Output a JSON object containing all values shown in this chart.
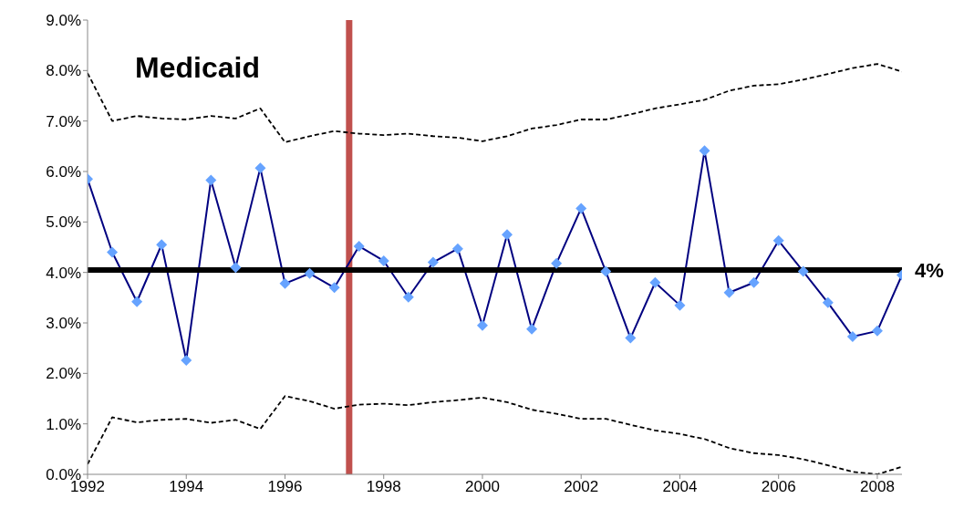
{
  "chart_data": {
    "type": "line",
    "title": "Medicaid",
    "x": [
      1992,
      1992.5,
      1993,
      1993.5,
      1994,
      1994.5,
      1995,
      1995.5,
      1996,
      1996.5,
      1997,
      1997.5,
      1998,
      1998.5,
      1999,
      1999.5,
      2000,
      2000.5,
      2001,
      2001.5,
      2002,
      2002.5,
      2003,
      2003.5,
      2004,
      2004.5,
      2005,
      2005.5,
      2006,
      2006.5,
      2007,
      2007.5,
      2008,
      2008.5
    ],
    "series": [
      {
        "color": "#000080",
        "marker": "diamond",
        "line_style": "solid",
        "values": [
          5.85,
          4.4,
          3.42,
          4.55,
          2.26,
          5.83,
          4.1,
          6.07,
          3.78,
          3.98,
          3.7,
          4.52,
          4.23,
          3.51,
          4.2,
          4.47,
          2.95,
          4.75,
          2.88,
          4.18,
          5.27,
          4.02,
          2.7,
          3.8,
          3.35,
          6.41,
          3.6,
          3.8,
          4.63,
          4.02,
          3.4,
          2.73,
          2.84,
          3.95
        ]
      },
      {
        "color": "#000000",
        "marker": "none",
        "line_style": "dashed",
        "values": [
          7.95,
          7.0,
          7.1,
          7.05,
          7.03,
          7.1,
          7.05,
          7.25,
          6.58,
          6.7,
          6.8,
          6.75,
          6.72,
          6.75,
          6.7,
          6.67,
          6.6,
          6.7,
          6.85,
          6.92,
          7.03,
          7.03,
          7.13,
          7.25,
          7.33,
          7.42,
          7.6,
          7.7,
          7.73,
          7.82,
          7.93,
          8.05,
          8.13,
          7.98
        ]
      },
      {
        "color": "#000000",
        "marker": "none",
        "line_style": "dashed",
        "values": [
          0.2,
          1.13,
          1.03,
          1.08,
          1.1,
          1.02,
          1.08,
          0.9,
          1.55,
          1.45,
          1.3,
          1.38,
          1.4,
          1.37,
          1.43,
          1.47,
          1.52,
          1.43,
          1.28,
          1.2,
          1.1,
          1.1,
          0.98,
          0.87,
          0.8,
          0.7,
          0.52,
          0.42,
          0.38,
          0.3,
          0.18,
          0.05,
          0.0,
          0.15
        ]
      }
    ],
    "xlim": [
      1992,
      2008.5
    ],
    "xticks": [
      1992,
      1994,
      1996,
      1998,
      2000,
      2002,
      2004,
      2006,
      2008
    ],
    "ylim": [
      0,
      9
    ],
    "yticks": [
      {
        "value": 0,
        "label": "0.0%"
      },
      {
        "value": 1,
        "label": "1.0%"
      },
      {
        "value": 2,
        "label": "2.0%"
      },
      {
        "value": 3,
        "label": "3.0%"
      },
      {
        "value": 4,
        "label": "4.0%"
      },
      {
        "value": 5,
        "label": "5.0%"
      },
      {
        "value": 6,
        "label": "6.0%"
      },
      {
        "value": 7,
        "label": "7.0%"
      },
      {
        "value": 8,
        "label": "8.0%"
      },
      {
        "value": 9,
        "label": "9.0%"
      }
    ],
    "ref_lines": [
      {
        "axis": "y",
        "value": 4.05,
        "label": "4%",
        "color": "#000000"
      },
      {
        "axis": "x",
        "value": 1997.3,
        "color": "#c0504d"
      }
    ]
  }
}
